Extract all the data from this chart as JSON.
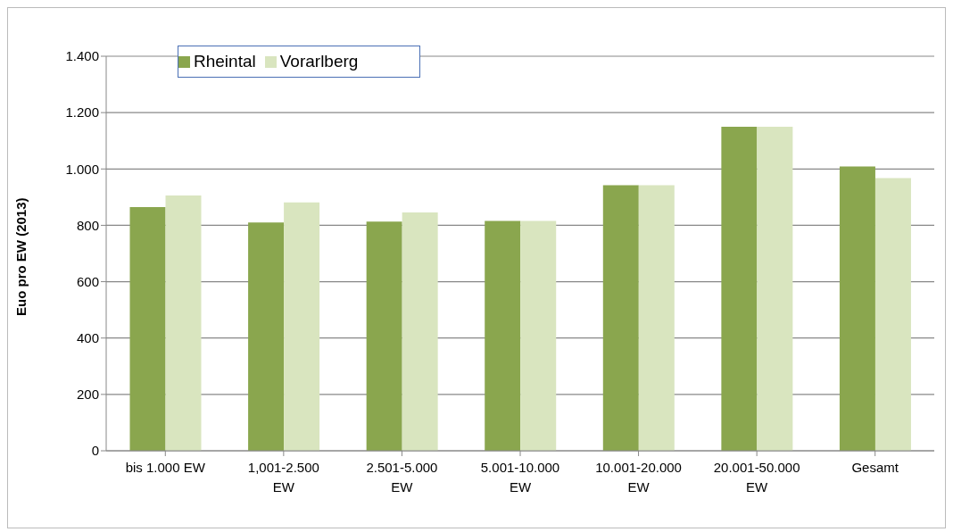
{
  "chart_data": {
    "type": "bar",
    "ylabel": "Euo pro EW (2013)",
    "categories": [
      "bis 1.000 EW",
      "1,001-2.500 EW",
      "2.501-5.000 EW",
      "5.001-10.000 EW",
      "10.001-20.000 EW",
      "20.001-50.000 EW",
      "Gesamt"
    ],
    "series": [
      {
        "name": "Rheintal",
        "color": "#8aa64e",
        "values": [
          865,
          810,
          813,
          816,
          942,
          1150,
          1009
        ]
      },
      {
        "name": "Vorarlberg",
        "color": "#d9e5bf",
        "values": [
          906,
          881,
          846,
          816,
          942,
          1150,
          968
        ]
      }
    ],
    "ylim": [
      0,
      1400
    ],
    "yticks": [
      0,
      200,
      400,
      600,
      800,
      {
        "value": 1000,
        "label": "1.000"
      },
      {
        "value": 1200,
        "label": "1.200"
      },
      {
        "value": 1400,
        "label": "1.400"
      }
    ],
    "grid": "y",
    "legend": "top left"
  }
}
